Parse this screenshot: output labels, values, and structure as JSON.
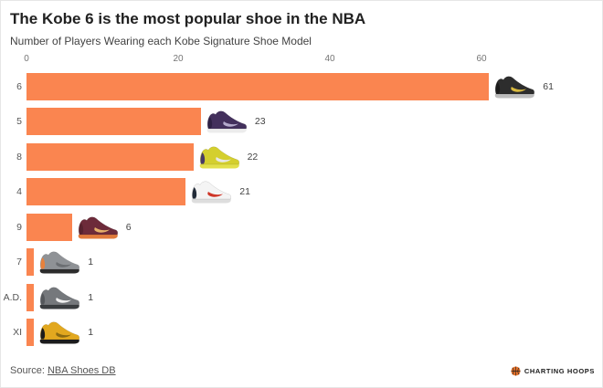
{
  "header": {
    "title": "The Kobe 6 is the most popular shoe in the NBA",
    "subtitle": "Number of Players Wearing each Kobe Signature Shoe Model"
  },
  "chart_data": {
    "type": "bar",
    "orientation": "horizontal",
    "title": "The Kobe 6 is the most popular shoe in the NBA",
    "subtitle": "Number of Players Wearing each Kobe Signature Shoe Model",
    "categories": [
      "6",
      "5",
      "8",
      "4",
      "9",
      "7",
      "A.D.",
      "XI"
    ],
    "values": [
      61,
      23,
      22,
      21,
      6,
      1,
      1,
      1
    ],
    "xlabel": "",
    "x_ticks": [
      0,
      20,
      40,
      60
    ],
    "xlim": [
      0,
      66
    ],
    "grid": false,
    "legend": false,
    "bar_color": "#fa8550"
  },
  "rows": [
    {
      "label": "6",
      "value": 61,
      "shoe": {
        "name": "kobe-6-black-gold-shoe",
        "body": "#2d2d2d",
        "swoosh": "#d8b93f",
        "sole": "#bdbdbd",
        "accent": "#1b1b1b"
      }
    },
    {
      "label": "5",
      "value": 23,
      "shoe": {
        "name": "kobe-5-purple-shoe",
        "body": "#43305c",
        "swoosh": "#b4aacb",
        "sole": "#ececec",
        "accent": "#2e2144"
      }
    },
    {
      "label": "8",
      "value": 22,
      "shoe": {
        "name": "kobe-8-volt-purple-shoe",
        "body": "#d4cf2e",
        "swoosh": "#e8e8e8",
        "sole": "#e3e04a",
        "accent": "#473a66"
      }
    },
    {
      "label": "4",
      "value": 21,
      "shoe": {
        "name": "kobe-4-white-red-shoe",
        "body": "#f4f4f4",
        "swoosh": "#cf3527",
        "sole": "#dedede",
        "accent": "#222b38"
      }
    },
    {
      "label": "9",
      "value": 6,
      "shoe": {
        "name": "kobe-9-maroon-shoe",
        "body": "#6d2b3a",
        "swoosh": "#e5b06a",
        "sole": "#e07a3c",
        "accent": "#57222e"
      }
    },
    {
      "label": "7",
      "value": 1,
      "shoe": {
        "name": "kobe-7-grey-orange-shoe",
        "body": "#8f9296",
        "swoosh": "#6b6e72",
        "sole": "#2c2c2c",
        "accent": "#e8813c"
      }
    },
    {
      "label": "A.D.",
      "value": 1,
      "shoe": {
        "name": "kobe-ad-grey-shoe",
        "body": "#75787c",
        "swoosh": "#f0f0f0",
        "sole": "#3a3d40",
        "accent": "#55585c"
      }
    },
    {
      "label": "XI",
      "value": 1,
      "shoe": {
        "name": "kobe-11-gold-black-shoe",
        "body": "#e2a81f",
        "swoosh": "#8a6a12",
        "sole": "#1c1c1c",
        "accent": "#1c1c1c"
      }
    }
  ],
  "footer": {
    "source_prefix": "Source:",
    "source_link": "NBA Shoes DB",
    "brand": "CHARTING HOOPS",
    "brand_color": "#e8732a"
  }
}
